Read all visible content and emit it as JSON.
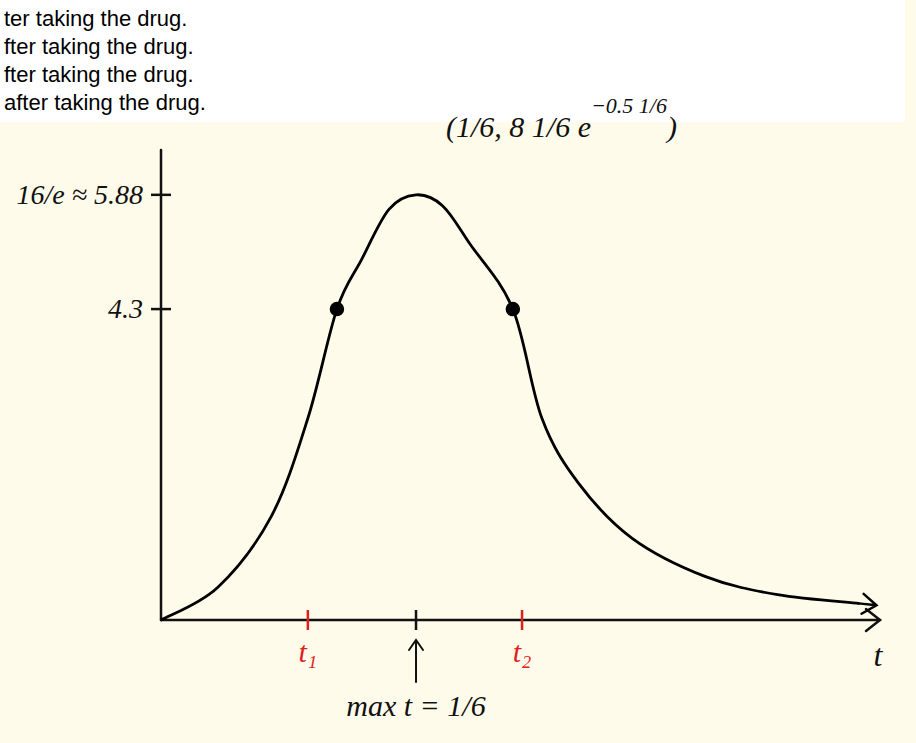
{
  "document": {
    "lines": [
      "ter taking the drug.",
      "fter taking the drug.",
      "fter taking the drug.",
      "after taking the drug."
    ]
  },
  "chart_data": {
    "type": "line",
    "x_label": "t",
    "xlim": [
      0,
      0.47
    ],
    "ylim": [
      0,
      6.5
    ],
    "xticks": [
      {
        "value": 0.096,
        "label": "t₁"
      },
      {
        "value": 0.1667,
        "label": "max t = 1/6"
      },
      {
        "value": 0.236,
        "label": "t₂"
      }
    ],
    "yticks": [
      4.3,
      {
        "value": 5.88,
        "label": "16/e ≈ 5.88"
      }
    ],
    "grid": false,
    "series": [
      {
        "type": "line",
        "color": "#000000",
        "line_style": "solid",
        "x": [
          0,
          0.037,
          0.072,
          0.096,
          0.115,
          0.131,
          0.149,
          0.1667,
          0.184,
          0.202,
          0.23,
          0.249,
          0.273,
          0.308,
          0.356,
          0.403,
          0.456
        ],
        "values": [
          0,
          0.45,
          1.43,
          2.79,
          4.3,
          4.98,
          5.68,
          5.88,
          5.73,
          5.2,
          4.3,
          2.79,
          1.89,
          1.13,
          0.6,
          0.35,
          0.23
        ]
      },
      {
        "type": "scatter",
        "color": "#000000",
        "marker": "circle",
        "x": [
          0.115,
          0.23
        ],
        "values": [
          4.3,
          4.3
        ]
      }
    ],
    "annotations": [
      {
        "text": "(1/6, 8 1/6 e",
        "superscript": "−0.5 1/6",
        "text_end": ")",
        "x": 0.1667,
        "y": 5.88
      }
    ]
  }
}
